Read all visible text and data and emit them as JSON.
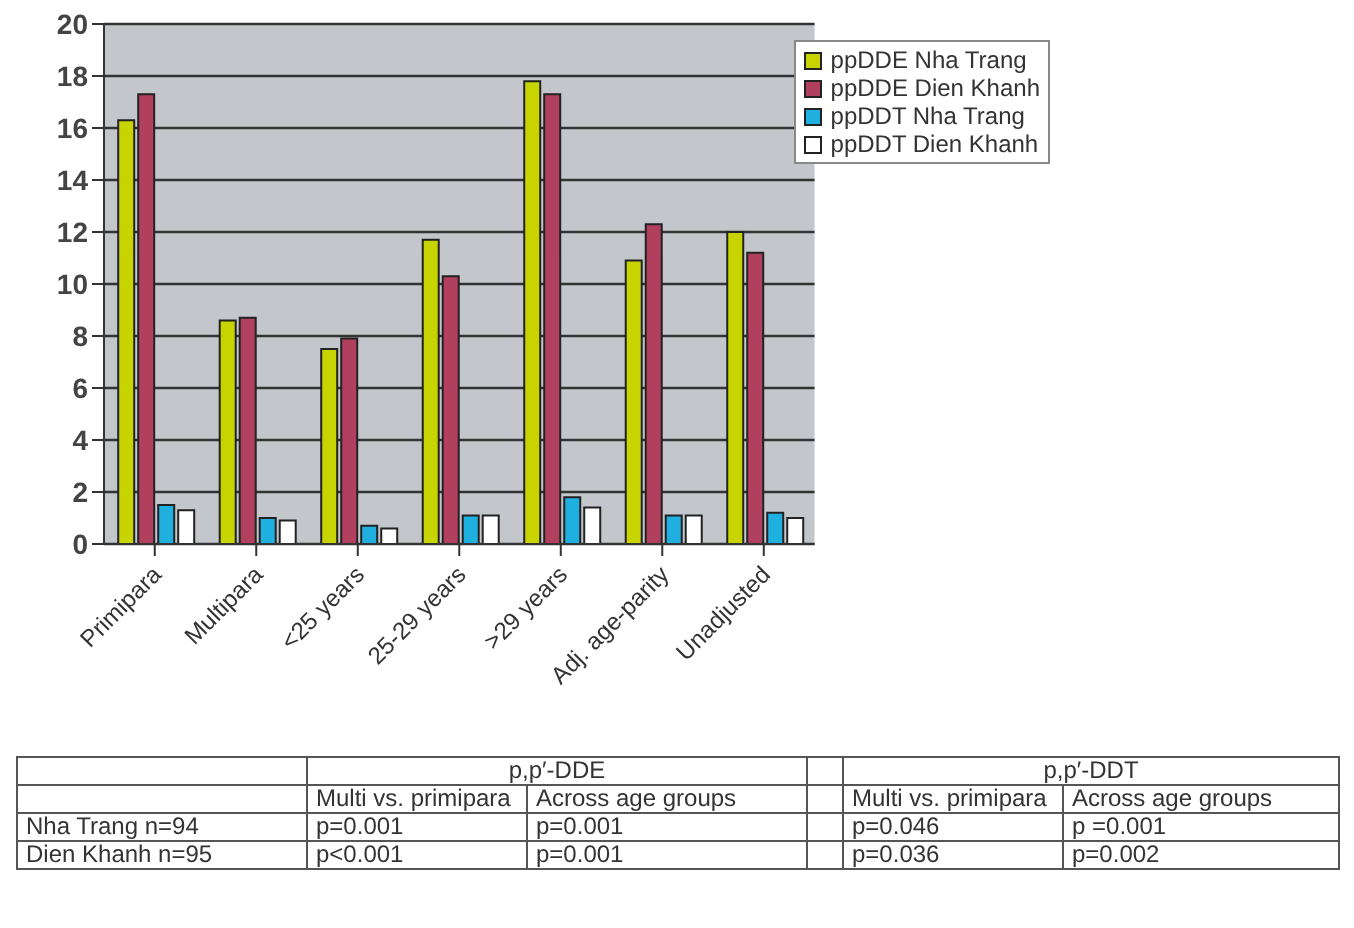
{
  "chart_data": {
    "type": "bar",
    "categories": [
      "Primipara",
      "Multipara",
      "<25 years",
      "25-29 years",
      ">29 years",
      "Adj. age-parity",
      "Unadjusted"
    ],
    "series": [
      {
        "name": "ppDDE Nha Trang",
        "color": "#c8d400",
        "values": [
          16.3,
          8.6,
          7.5,
          11.7,
          17.8,
          10.9,
          12.0
        ]
      },
      {
        "name": "ppDDE Dien Khanh",
        "color": "#b0405e",
        "values": [
          17.3,
          8.7,
          7.9,
          10.3,
          17.3,
          12.3,
          11.2
        ]
      },
      {
        "name": "ppDDT Nha Trang",
        "color": "#20b0e0",
        "values": [
          1.5,
          1.0,
          0.7,
          1.1,
          1.8,
          1.1,
          1.2
        ]
      },
      {
        "name": "ppDDT Dien Khanh",
        "color": "#ffffff",
        "values": [
          1.3,
          0.9,
          0.6,
          1.1,
          1.4,
          1.1,
          1.0
        ]
      }
    ],
    "ylim": [
      0,
      20
    ],
    "yticks": [
      0,
      2,
      4,
      6,
      8,
      10,
      12,
      14,
      16,
      18,
      20
    ],
    "grid": "y",
    "legend": "top right",
    "annotations": [
      "p,p′-DDE",
      "p,p′-DDT",
      "Multi vs. primipara",
      "Across age groups",
      "Multi vs. primipara",
      "Across age groups",
      "Nha Trang n=94",
      "p=0.001",
      "p=0.001",
      "p=0.046",
      "p =0.001",
      "Dien Khanh n=95",
      "p<0.001",
      "p=0.001",
      "p=0.036",
      "p=0.002"
    ]
  }
}
